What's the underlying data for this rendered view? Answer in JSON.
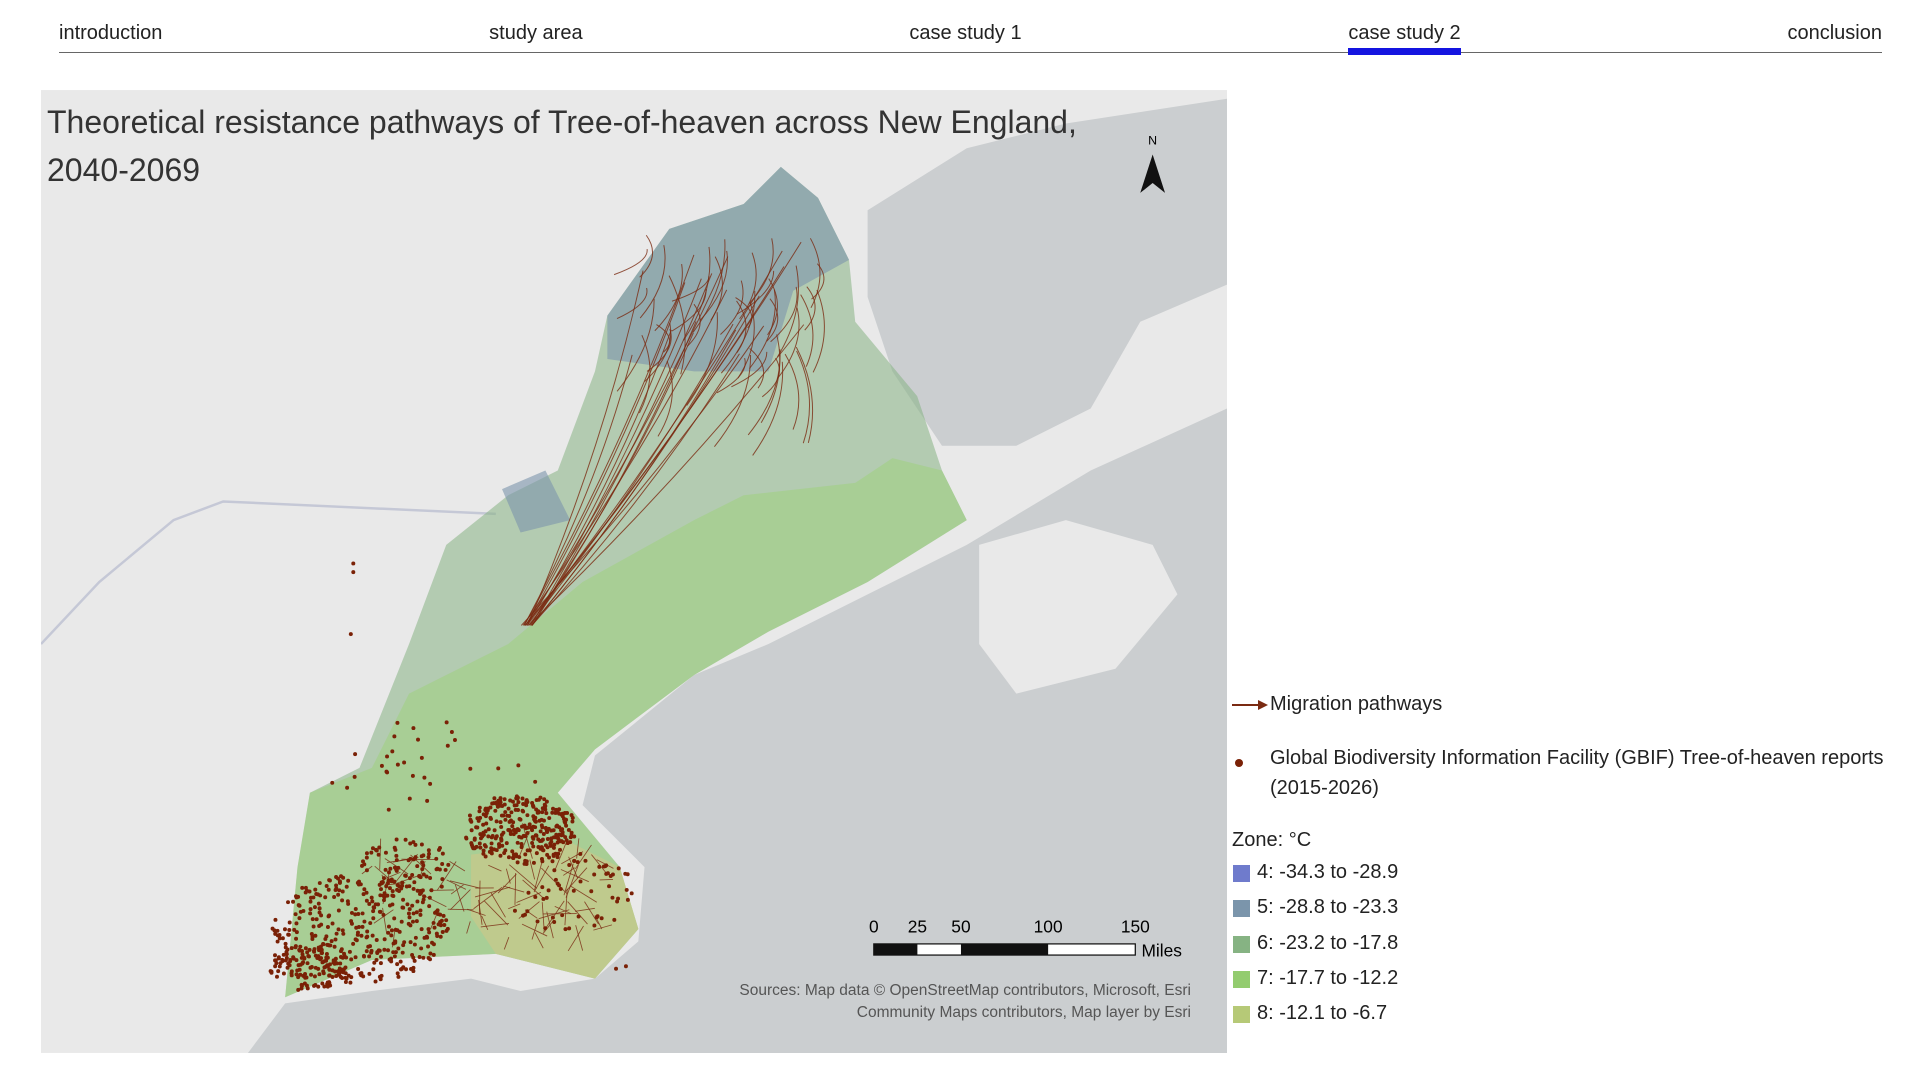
{
  "nav": {
    "items": [
      "introduction",
      "study area",
      "case study 1",
      "case study 2",
      "conclusion"
    ],
    "active": 3
  },
  "map": {
    "title": "Theoretical resistance pathways of Tree-of-heaven across New England, 2040-2069",
    "north": "N",
    "scale": {
      "labels": [
        0,
        25,
        50,
        100,
        150
      ],
      "unit": "Miles"
    },
    "sources": [
      "Sources: Map data © OpenStreetMap contributors, Microsoft, Esri",
      "Community Maps contributors, Map layer by Esri"
    ]
  },
  "legend": {
    "pathways": "Migration pathways",
    "gbif": "Global Biodiversity Information Facility (GBIF) Tree-of-heaven reports (2015-2026)",
    "zone_title": "Zone: °C",
    "zones": [
      {
        "label": "4: -34.3 to -28.9",
        "color": "#6f7bcc"
      },
      {
        "label": "5: -28.8 to -23.3",
        "color": "#7b95ab"
      },
      {
        "label": "6: -23.2 to -17.8",
        "color": "#86b383"
      },
      {
        "label": "7: -17.7 to -12.2",
        "color": "#93cc6f"
      },
      {
        "label": "8: -12.1 to -6.7",
        "color": "#b6c977"
      }
    ]
  }
}
